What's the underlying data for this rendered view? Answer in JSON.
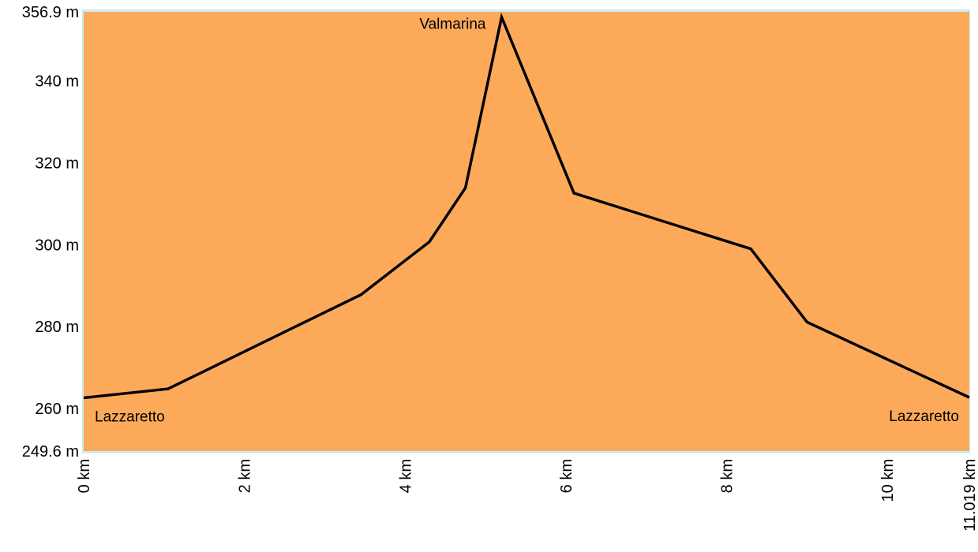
{
  "chart_data": {
    "type": "area",
    "title": "",
    "xlabel": "",
    "ylabel": "",
    "x_unit": "km",
    "y_unit": "m",
    "xlim": [
      0,
      11.019
    ],
    "ylim": [
      249.6,
      356.9
    ],
    "grid": false,
    "legend": "none",
    "colors": {
      "fill": "#fcaa5a",
      "line": "#000000",
      "frame": "#c8eef6"
    },
    "x": [
      0,
      1.05,
      3.45,
      4.3,
      4.75,
      5.2,
      6.1,
      8.3,
      9.0,
      11.019
    ],
    "y": [
      262.6,
      264.8,
      287.8,
      300.7,
      313.9,
      355.6,
      312.6,
      299.0,
      281.1,
      262.7
    ],
    "y_ticks": [
      {
        "value": 356.9,
        "label": "356.9 m"
      },
      {
        "value": 340,
        "label": "340 m"
      },
      {
        "value": 320,
        "label": "320 m"
      },
      {
        "value": 300,
        "label": "300 m"
      },
      {
        "value": 280,
        "label": "280 m"
      },
      {
        "value": 260,
        "label": "260 m"
      },
      {
        "value": 249.6,
        "label": "249.6 m"
      }
    ],
    "x_ticks": [
      {
        "value": 0,
        "label": "0 km"
      },
      {
        "value": 2,
        "label": "2 km"
      },
      {
        "value": 4,
        "label": "4 km"
      },
      {
        "value": 6,
        "label": "6 km"
      },
      {
        "value": 8,
        "label": "8 km"
      },
      {
        "value": 10,
        "label": "10 km"
      },
      {
        "value": 11.019,
        "label": "11.019 km"
      }
    ],
    "annotations": [
      {
        "text": "Lazzaretto",
        "x": 0,
        "y": 262.6,
        "anchor": "start"
      },
      {
        "text": "Valmarina",
        "x": 5.2,
        "y": 355.6,
        "anchor": "end"
      },
      {
        "text": "Lazzaretto",
        "x": 11.019,
        "y": 262.7,
        "anchor": "end"
      }
    ]
  }
}
